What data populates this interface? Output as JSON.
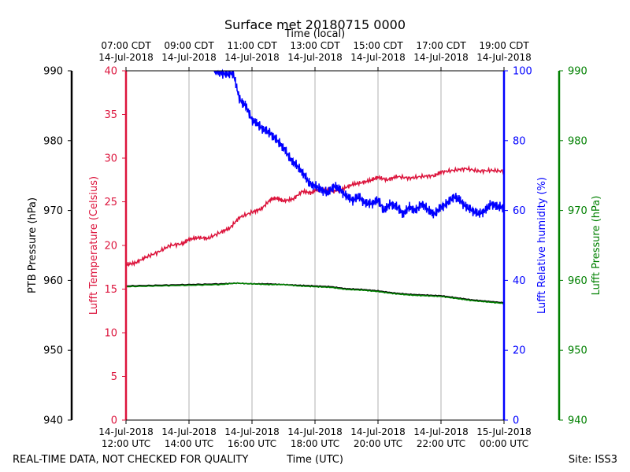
{
  "chart_data": {
    "type": "line",
    "title": "Surface met 20180715 0000",
    "top_axis_label": "Time (local)",
    "bottom_axis_label": "Time (UTC)",
    "footer_left": "REAL-TIME DATA, NOT CHECKED FOR QUALITY",
    "footer_right": "Site: ISS3",
    "x_range_hours_utc": [
      12,
      24
    ],
    "x_ticks": [
      {
        "hour": 12,
        "utc_date": "14-Jul-2018",
        "utc_time": "12:00 UTC",
        "local_time": "07:00 CDT",
        "local_date": "14-Jul-2018"
      },
      {
        "hour": 14,
        "utc_date": "14-Jul-2018",
        "utc_time": "14:00 UTC",
        "local_time": "09:00 CDT",
        "local_date": "14-Jul-2018"
      },
      {
        "hour": 16,
        "utc_date": "14-Jul-2018",
        "utc_time": "16:00 UTC",
        "local_time": "11:00 CDT",
        "local_date": "14-Jul-2018"
      },
      {
        "hour": 18,
        "utc_date": "14-Jul-2018",
        "utc_time": "18:00 UTC",
        "local_time": "13:00 CDT",
        "local_date": "14-Jul-2018"
      },
      {
        "hour": 20,
        "utc_date": "14-Jul-2018",
        "utc_time": "20:00 UTC",
        "local_time": "15:00 CDT",
        "local_date": "14-Jul-2018"
      },
      {
        "hour": 22,
        "utc_date": "14-Jul-2018",
        "utc_time": "22:00 UTC",
        "local_time": "17:00 CDT",
        "local_date": "14-Jul-2018"
      },
      {
        "hour": 24,
        "utc_date": "15-Jul-2018",
        "utc_time": "00:00 UTC",
        "local_time": "19:00 CDT",
        "local_date": "14-Jul-2018"
      }
    ],
    "axes": {
      "ptb_pressure": {
        "label": "PTB Pressure (hPa)",
        "range": [
          940,
          990
        ],
        "ticks": [
          940,
          950,
          960,
          970,
          980,
          990
        ],
        "color": "#000000"
      },
      "temperature": {
        "label": "Lufft Temperature (Celsius)",
        "range": [
          0,
          40
        ],
        "ticks": [
          0,
          5,
          10,
          15,
          20,
          25,
          30,
          35,
          40
        ],
        "color": "#dc143c"
      },
      "humidity": {
        "label": "Lufft Relative humidity (%)",
        "range": [
          0,
          100
        ],
        "ticks": [
          0,
          20,
          40,
          60,
          80,
          100
        ],
        "color": "#0000ff"
      },
      "lufft_pressure": {
        "label": "Lufft Pressure (hPa)",
        "range": [
          940,
          990
        ],
        "ticks": [
          940,
          950,
          960,
          970,
          980,
          990
        ],
        "color": "#008000"
      }
    },
    "series": [
      {
        "name": "Lufft Temperature",
        "axis": "temperature",
        "color": "#dc143c",
        "x": [
          12.0,
          12.3,
          12.6,
          13.0,
          13.4,
          13.8,
          14.0,
          14.3,
          14.6,
          15.0,
          15.3,
          15.6,
          16.0,
          16.3,
          16.6,
          16.8,
          17.0,
          17.3,
          17.6,
          17.9,
          18.0,
          18.3,
          18.6,
          18.9,
          19.2,
          19.5,
          19.8,
          20.0,
          20.3,
          20.6,
          21.0,
          21.4,
          21.8,
          22.0,
          22.4,
          22.8,
          23.2,
          23.6,
          24.0
        ],
        "values": [
          17.8,
          18.0,
          18.6,
          19.2,
          20.0,
          20.2,
          20.7,
          20.9,
          20.8,
          21.5,
          22.0,
          23.2,
          23.8,
          24.2,
          25.3,
          25.4,
          25.1,
          25.3,
          26.2,
          26.0,
          26.3,
          26.4,
          26.2,
          26.5,
          27.0,
          27.2,
          27.5,
          27.8,
          27.5,
          27.9,
          27.7,
          27.9,
          28.0,
          28.4,
          28.6,
          28.8,
          28.5,
          28.6,
          28.5
        ]
      },
      {
        "name": "Lufft Relative humidity",
        "axis": "humidity",
        "color": "#0000ff",
        "x": [
          14.8,
          15.0,
          15.2,
          15.4,
          15.6,
          15.8,
          16.0,
          16.2,
          16.4,
          16.6,
          16.8,
          17.0,
          17.2,
          17.4,
          17.6,
          17.8,
          18.0,
          18.2,
          18.4,
          18.6,
          18.8,
          19.0,
          19.2,
          19.4,
          19.6,
          19.8,
          20.0,
          20.2,
          20.4,
          20.6,
          20.8,
          21.0,
          21.2,
          21.4,
          21.6,
          21.8,
          22.0,
          22.2,
          22.4,
          22.6,
          22.8,
          23.0,
          23.2,
          23.4,
          23.6,
          23.8,
          24.0
        ],
        "values": [
          100,
          99.5,
          99,
          99.5,
          92,
          90,
          86,
          84.5,
          83,
          82,
          80,
          78,
          75,
          73,
          71,
          68,
          67,
          66,
          65,
          67,
          66,
          64,
          63,
          64,
          62,
          62,
          63,
          60,
          62,
          61,
          59,
          61,
          60,
          62,
          60,
          59,
          61,
          62,
          64,
          63,
          61,
          60,
          59,
          60,
          62,
          61,
          61
        ]
      },
      {
        "name": "PTB Pressure",
        "axis": "ptb_pressure",
        "color": "#000000",
        "x": [
          12.0,
          13.0,
          14.0,
          15.0,
          15.5,
          16.0,
          16.5,
          17.0,
          17.5,
          18.0,
          18.5,
          19.0,
          19.5,
          20.0,
          20.5,
          21.0,
          21.5,
          22.0,
          22.5,
          23.0,
          23.5,
          24.0
        ],
        "values": [
          959.2,
          959.3,
          959.4,
          959.5,
          959.6,
          959.5,
          959.5,
          959.4,
          959.3,
          959.2,
          959.1,
          958.8,
          958.7,
          958.5,
          958.2,
          958.0,
          957.9,
          957.8,
          957.5,
          957.2,
          957.0,
          956.8
        ]
      },
      {
        "name": "Lufft Pressure",
        "axis": "lufft_pressure",
        "color": "#008000",
        "x": [
          12.0,
          13.0,
          14.0,
          15.0,
          15.5,
          16.0,
          16.5,
          17.0,
          17.5,
          18.0,
          18.5,
          19.0,
          19.5,
          20.0,
          20.5,
          21.0,
          21.5,
          22.0,
          22.5,
          23.0,
          23.5,
          24.0
        ],
        "values": [
          959.1,
          959.2,
          959.3,
          959.4,
          959.6,
          959.5,
          959.4,
          959.4,
          959.2,
          959.1,
          959.0,
          958.7,
          958.6,
          958.4,
          958.1,
          957.9,
          957.8,
          957.7,
          957.4,
          957.1,
          956.9,
          956.7
        ]
      }
    ]
  }
}
